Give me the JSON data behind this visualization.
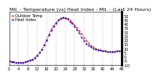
{
  "title": "Mil. - Temperature (vs) Heat Index - Mil. - (Last 24 Hours)",
  "background_color": "#ffffff",
  "plot_bg_color": "#ffffff",
  "grid_color": "#999999",
  "x_values": [
    0,
    1,
    2,
    3,
    4,
    5,
    6,
    7,
    8,
    9,
    10,
    11,
    12,
    13,
    14,
    15,
    16,
    17,
    18,
    19,
    20,
    21,
    22,
    23,
    24,
    25,
    26,
    27,
    28,
    29,
    30,
    31,
    32,
    33,
    34,
    35,
    36,
    37,
    38,
    39,
    40,
    41,
    42,
    43,
    44,
    45,
    46,
    47
  ],
  "temp_values": [
    -5,
    -6,
    -6,
    -7,
    -7,
    -7,
    -7,
    -6,
    -5,
    -4,
    -3,
    -1,
    2,
    5,
    9,
    14,
    20,
    26,
    32,
    37,
    41,
    44,
    46,
    47,
    47,
    46,
    44,
    42,
    39,
    36,
    32,
    28,
    24,
    20,
    17,
    14,
    12,
    10,
    9,
    8,
    7,
    7,
    6,
    6,
    6,
    6,
    7,
    7
  ],
  "heat_index_values": [
    -5,
    -6,
    -6,
    -7,
    -7,
    -7,
    -7,
    -6,
    -5,
    -4,
    -3,
    -1,
    2,
    5,
    9,
    15,
    21,
    27,
    33,
    38,
    42,
    45,
    47,
    48,
    47,
    46,
    43,
    41,
    37,
    33,
    29,
    24,
    20,
    16,
    14,
    12,
    10,
    9,
    8,
    8,
    7,
    7,
    6,
    6,
    6,
    6,
    7,
    7
  ],
  "temp_color": "#ff0000",
  "heat_index_color": "#0000cc",
  "ylim": [
    -10,
    55
  ],
  "xlim": [
    0,
    47
  ],
  "title_fontsize": 4.5,
  "tick_fontsize": 3.5,
  "legend_fontsize": 3.5,
  "line_width": 0.6,
  "marker_size": 1.0,
  "legend_labels": [
    "Outdoor Temp",
    "Heat Index"
  ],
  "y_tick_values": [
    -10,
    -5,
    0,
    5,
    10,
    15,
    20,
    25,
    30,
    35,
    40,
    45,
    50
  ],
  "ytick_labels": [
    "-10",
    "-5",
    "0",
    "5",
    "10",
    "15",
    "20",
    "25",
    "30",
    "35",
    "40",
    "45",
    "50"
  ],
  "x_ticks": [
    0,
    4,
    8,
    12,
    16,
    20,
    24,
    28,
    32,
    36,
    40,
    44,
    48
  ],
  "x_tick_labels": [
    "0",
    "4",
    "8",
    "12",
    "16",
    "20",
    "24",
    "28",
    "32",
    "36",
    "40",
    "44",
    "48"
  ]
}
